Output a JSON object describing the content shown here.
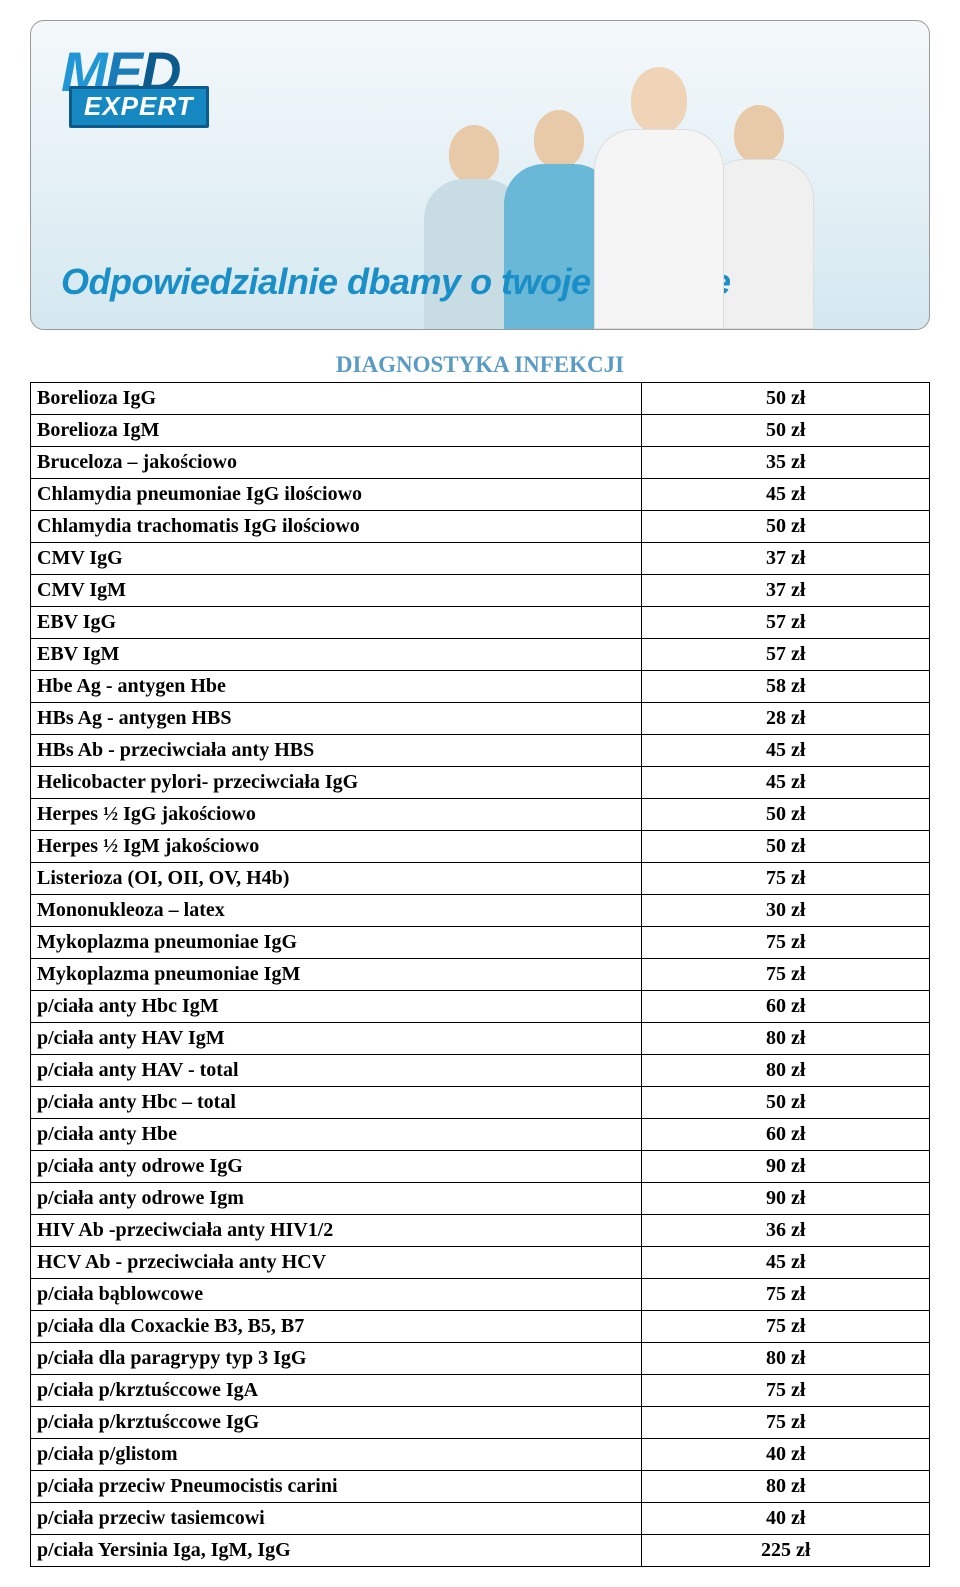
{
  "banner": {
    "logo_text_1": "M",
    "logo_text_2": "E",
    "logo_text_3": "D",
    "logo_expert": "EXPERT",
    "tagline": "Odpowiedzialnie dbamy o twoje zdrowie",
    "background_gradient": [
      "#f4f8fb",
      "#e8f2f7",
      "#d4e8f0"
    ],
    "tagline_color": "#1a8fc7",
    "logo_colors": [
      "#2196d4",
      "#1a7bb8",
      "#0d5a8c"
    ]
  },
  "title": "DIAGNOSTYKA INFEKCJI",
  "title_color": "#5a9bc4",
  "title_fontsize": 23,
  "table": {
    "border_color": "#000000",
    "cell_fontsize": 20,
    "cell_font_weight": "bold",
    "col_widths": [
      "68%",
      "32%"
    ],
    "rows": [
      {
        "name": "Borelioza IgG",
        "price": "50 zł"
      },
      {
        "name": "Borelioza IgM",
        "price": "50 zł"
      },
      {
        "name": "Bruceloza – jakościowo",
        "price": "35 zł"
      },
      {
        "name": "Chlamydia pneumoniae IgG ilościowo",
        "price": "45 zł"
      },
      {
        "name": "Chlamydia trachomatis IgG  ilościowo",
        "price": "50 zł"
      },
      {
        "name": "CMV  IgG",
        "price": "37 zł"
      },
      {
        "name": "CMV IgM",
        "price": "37 zł"
      },
      {
        "name": "EBV IgG",
        "price": "57 zł"
      },
      {
        "name": "EBV IgM",
        "price": "57 zł"
      },
      {
        "name": "Hbe  Ag - antygen Hbe",
        "price": "58 zł"
      },
      {
        "name": "HBs Ag  - antygen HBS",
        "price": "28 zł"
      },
      {
        "name": "HBs Ab - przeciwciała anty HBS",
        "price": "45 zł"
      },
      {
        "name": "Helicobacter pylori- przeciwciała IgG",
        "price": "45 zł"
      },
      {
        "name": "Herpes ½ IgG jakościowo",
        "price": "50 zł"
      },
      {
        "name": "Herpes ½ IgM jakościowo",
        "price": "50 zł"
      },
      {
        "name": "Listerioza (OI, OII, OV, H4b)",
        "price": "75 zł"
      },
      {
        "name": "Mononukleoza – latex",
        "price": "30 zł"
      },
      {
        "name": "Mykoplazma pneumoniae IgG",
        "price": "75 zł"
      },
      {
        "name": "Mykoplazma pneumoniae IgM",
        "price": "75 zł"
      },
      {
        "name": "p/ciała anty Hbc IgM",
        "price": "60 zł"
      },
      {
        "name": "p/ciała anty HAV IgM",
        "price": "80 zł"
      },
      {
        "name": "p/ciała anty HAV - total",
        "price": "80 zł"
      },
      {
        "name": "p/ciała anty Hbc – total",
        "price": "50 zł"
      },
      {
        "name": "p/ciała anty Hbe",
        "price": "60 zł"
      },
      {
        "name": "p/ciała anty odrowe  IgG",
        "price": "90 zł"
      },
      {
        "name": "p/ciała anty odrowe  Igm",
        "price": "90 zł"
      },
      {
        "name": "HIV Ab -przeciwciała anty HIV1/2",
        "price": "36 zł"
      },
      {
        "name": "HCV Ab - przeciwciała anty HCV",
        "price": "45 zł"
      },
      {
        "name": "p/ciała bąblowcowe",
        "price": "75 zł"
      },
      {
        "name": "p/ciała dla Coxackie  B3, B5, B7",
        "price": "75 zł"
      },
      {
        "name": "p/ciała dla paragrypy  typ 3 IgG",
        "price": "80 zł"
      },
      {
        "name": "p/ciała p/krztuśccowe  IgA",
        "price": "75 zł"
      },
      {
        "name": "p/ciała p/krztuśccowe  IgG",
        "price": "75 zł"
      },
      {
        "name": "p/ciała p/glistom",
        "price": "40 zł"
      },
      {
        "name": "p/ciała przeciw Pneumocistis carini",
        "price": "80 zł"
      },
      {
        "name": "p/ciała przeciw tasiemcowi",
        "price": "40 zł"
      },
      {
        "name": "p/ciała Yersinia Iga, IgM, IgG",
        "price": "225 zł"
      }
    ]
  }
}
